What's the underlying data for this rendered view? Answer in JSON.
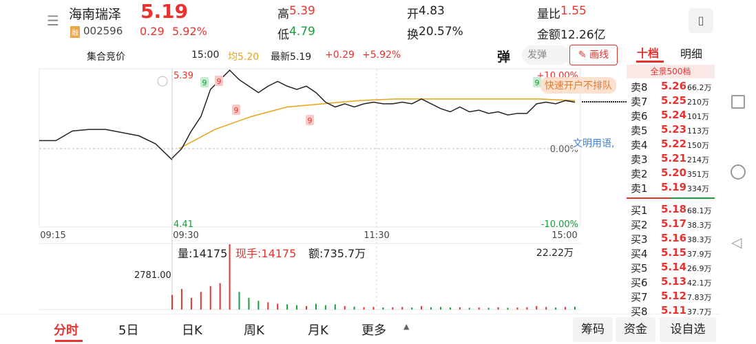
{
  "header": {
    "name": "海南瑞泽",
    "price": "5.19",
    "badge": "融",
    "code": "002596",
    "change": "0.29",
    "change_pct": "5.92%",
    "stats": [
      [
        "高",
        "5.39"
      ],
      [
        "低",
        "4.79"
      ],
      [
        "开",
        "4.83"
      ],
      [
        "换",
        "20.57%"
      ],
      [
        "量比",
        "1.55"
      ],
      [
        "金额",
        "12.26亿"
      ]
    ]
  },
  "chart_bar": {
    "mode": "集合竞价",
    "time": "15:00",
    "avg": "均5.20",
    "latest": "最新5.19",
    "change": "+0.29",
    "change_pct": "+5.92%",
    "tools": [
      "弹",
      "发弹",
      "画线"
    ]
  },
  "price_chart": {
    "ylim": [
      4.41,
      5.39
    ],
    "pct_lim": [
      -10,
      10
    ],
    "pct_ticks": [
      {
        "value": 10,
        "label": "+10.00%"
      },
      {
        "value": 0,
        "label": "0.00%"
      },
      {
        "value": -10,
        "label": "-10.00%"
      }
    ],
    "time_labels": [
      "09:15",
      "09:30",
      "11:30",
      "15:00"
    ],
    "auction_values": [
      4.95,
      4.95,
      5.01,
      5.02,
      5.02,
      5.0,
      4.98,
      4.93,
      4.83
    ],
    "values": [
      4.84,
      4.9,
      5.01,
      5.1,
      5.27,
      5.33,
      5.39,
      5.33,
      5.29,
      5.25,
      5.29,
      5.32,
      5.29,
      5.27,
      5.29,
      5.25,
      5.19,
      5.16,
      5.18,
      5.16,
      5.18,
      5.19,
      5.18,
      5.18,
      5.19,
      5.18,
      5.21,
      5.18,
      5.15,
      5.13,
      5.16,
      5.13,
      5.14,
      5.12,
      5.13,
      5.11,
      5.12,
      5.12,
      5.18,
      5.19,
      5.18,
      5.2,
      5.19
    ],
    "avg_values": [
      4.9,
      5.02,
      5.1,
      5.16,
      5.18,
      5.2,
      5.21,
      5.21,
      5.21,
      5.21,
      5.21,
      5.2
    ],
    "markers": [
      "9",
      "9",
      "9",
      "9",
      "9"
    ]
  },
  "volume_chart": {
    "info": [
      "量:14175",
      "现手:14175",
      "额:735.7万"
    ],
    "vol_max": {
      "value": 222200,
      "label": "22.22万"
    },
    "auction_label": "2781.00",
    "values": [
      50000,
      70000,
      40000,
      60000,
      80000,
      90000,
      222000,
      60000,
      40000,
      30000,
      25000,
      20000,
      18000,
      15000,
      12000,
      20000,
      15000,
      18000,
      12000,
      10000,
      8000,
      9000,
      7000,
      8000,
      9000,
      7000,
      12000,
      8000,
      9000,
      7000,
      8000,
      6000,
      7000,
      6000,
      8000,
      6000,
      7000,
      8000,
      12000,
      9000,
      7000,
      9000,
      10000
    ]
  },
  "overlays": {
    "ad": "快速开户不排队",
    "notice": "文明用语,"
  },
  "order_book": {
    "tabs": [
      "十档",
      "明细"
    ],
    "depth_label": "全景500档",
    "asks": [
      [
        "卖8",
        "5.26",
        "66.2万"
      ],
      [
        "卖7",
        "5.25",
        "210万"
      ],
      [
        "卖6",
        "5.24",
        "101万"
      ],
      [
        "卖5",
        "5.23",
        "113万"
      ],
      [
        "卖4",
        "5.22",
        "150万"
      ],
      [
        "卖3",
        "5.21",
        "214万"
      ],
      [
        "卖2",
        "5.20",
        "351万"
      ],
      [
        "卖1",
        "5.19",
        "334万"
      ]
    ],
    "bids": [
      [
        "买1",
        "5.18",
        "68.1万"
      ],
      [
        "买2",
        "5.17",
        "38.3万"
      ],
      [
        "买3",
        "5.16",
        "38.3万"
      ],
      [
        "买4",
        "5.15",
        "37.9万"
      ],
      [
        "买5",
        "5.14",
        "26.9万"
      ],
      [
        "买6",
        "5.13",
        "42.1万"
      ],
      [
        "买7",
        "5.12",
        "7.83万"
      ],
      [
        "买8",
        "5.11",
        "37.7万"
      ]
    ]
  },
  "bottom_tabs": [
    "分时",
    "5日",
    "日K",
    "周K",
    "月K",
    "更多"
  ],
  "actions": [
    "筹码",
    "资金",
    "设自选"
  ]
}
